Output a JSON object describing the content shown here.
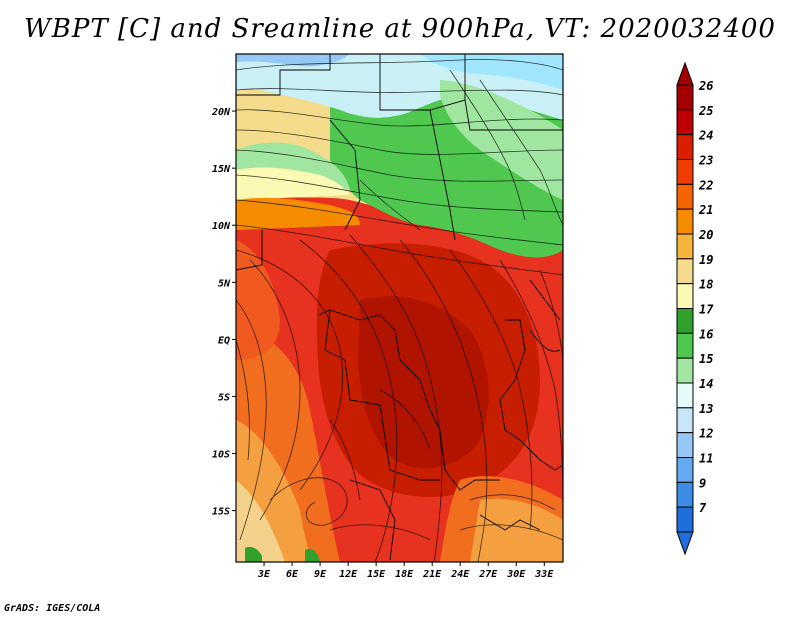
{
  "title": "WBPT [C] and Sreamline at 900hPa, VT: 2020032400",
  "footer": "GrADS: IGES/COLA",
  "map": {
    "lat_labels": [
      "20N",
      "15N",
      "10N",
      "5N",
      "EQ",
      "5S",
      "10S",
      "15S"
    ],
    "lat_values": [
      20,
      15,
      10,
      5,
      0,
      -5,
      -10,
      -15
    ],
    "lon_labels": [
      "3E",
      "6E",
      "9E",
      "12E",
      "15E",
      "18E",
      "21E",
      "24E",
      "27E",
      "30E",
      "33E"
    ],
    "lon_values": [
      3,
      6,
      9,
      12,
      15,
      18,
      21,
      24,
      27,
      30,
      33
    ],
    "lon_range": [
      0,
      35
    ],
    "lat_range": [
      -19.5,
      25
    ]
  },
  "colorbar": {
    "levels": [
      "26",
      "25",
      "24",
      "23",
      "22",
      "21",
      "20",
      "19",
      "18",
      "17",
      "16",
      "15",
      "14",
      "13",
      "12",
      "11",
      "9",
      "7"
    ],
    "colors": [
      "#a50000",
      "#c00000",
      "#dc1e00",
      "#f03c00",
      "#f56400",
      "#f58c00",
      "#f5b43c",
      "#f5dc8c",
      "#fafab4",
      "#32a02d",
      "#50c850",
      "#a0e6a0",
      "#e6fafa",
      "#c8e6fa",
      "#96c8f5",
      "#64aaf0",
      "#3c8ce6",
      "#1e6edc"
    ]
  }
}
